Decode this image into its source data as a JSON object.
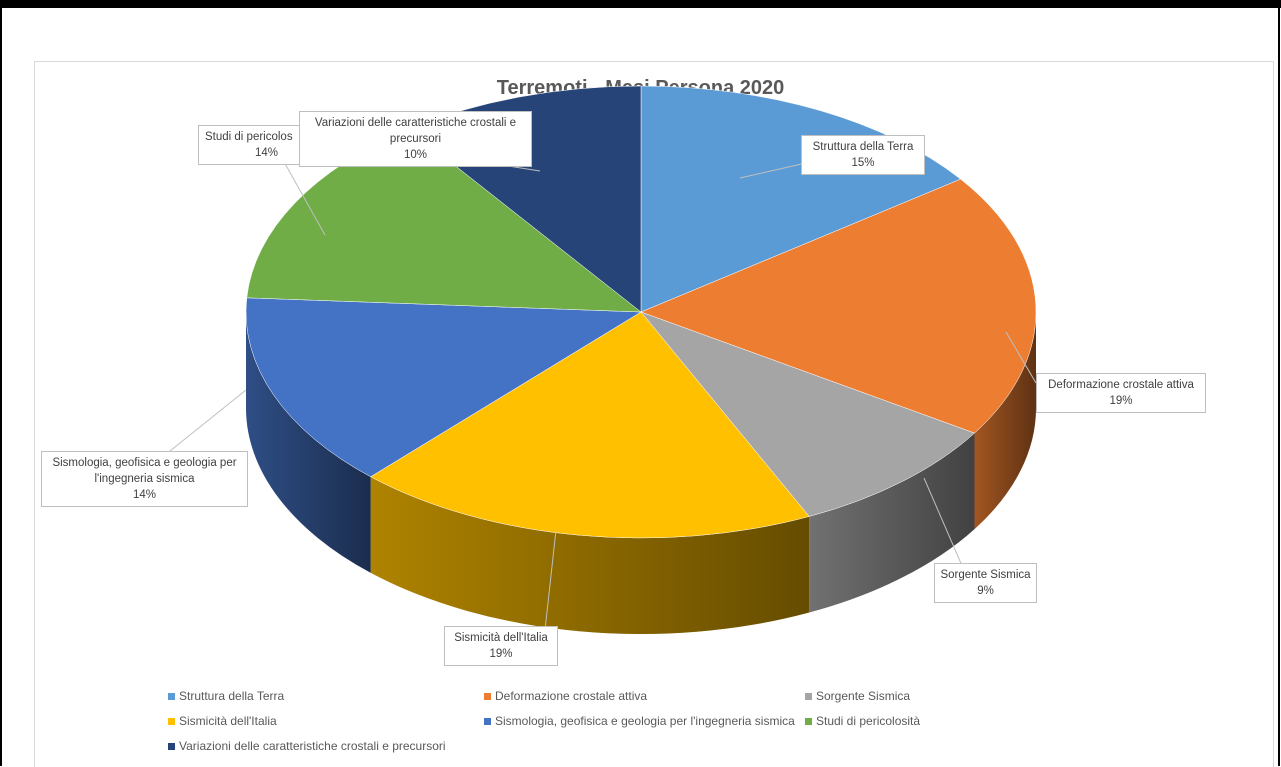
{
  "chart_data": {
    "type": "pie",
    "title": "Terremoti - Mesi Persona 2020",
    "slices": [
      {
        "label": "Struttura della Terra",
        "value": 15,
        "display": "15%",
        "color": "#5b9bd5"
      },
      {
        "label": "Deformazione crostale attiva",
        "value": 19,
        "display": "19%",
        "color": "#ed7d31"
      },
      {
        "label": "Sorgente Sismica",
        "value": 9,
        "display": "9%",
        "color": "#a5a5a5"
      },
      {
        "label": "Sismicità dell'Italia",
        "value": 19,
        "display": "19%",
        "color": "#ffc000"
      },
      {
        "label": "Sismologia, geofisica e geologia per l'ingegneria sismica",
        "value": 14,
        "display": "14%",
        "color": "#4472c4"
      },
      {
        "label": "Studi di pericolosità",
        "value": 14,
        "display": "14%",
        "color": "#70ad47"
      },
      {
        "label": "Variazioni delle caratteristiche crostali e precursori",
        "value": 10,
        "display": "10%",
        "color": "#264478"
      }
    ],
    "legend_position": "bottom",
    "style": "3d-exploded-pie"
  },
  "callouts": {
    "struttura": {
      "name": "Struttura della Terra",
      "pct": "15%"
    },
    "deformazione": {
      "name": "Deformazione crostale attiva",
      "pct": "19%"
    },
    "sorgente": {
      "name": "Sorgente Sismica",
      "pct": "9%"
    },
    "sismicita": {
      "name": "Sismicità dell'Italia",
      "pct": "19%"
    },
    "sismologia": {
      "name_line1": "Sismologia, geofisica e geologia per",
      "name_line2": "l'ingegneria sismica",
      "pct": "14%"
    },
    "studi": {
      "name": "Studi di pericolos",
      "pct": "14%"
    },
    "variazioni": {
      "name_line1": "Variazioni delle caratteristiche crostali e",
      "name_line2": "precursori",
      "pct": "10%"
    }
  },
  "legend": [
    "Struttura della Terra",
    "Deformazione crostale attiva",
    "Sorgente Sismica",
    "Sismicità dell'Italia",
    "Sismologia, geofisica e geologia per l'ingegneria sismica",
    "Studi di pericolosità",
    "Variazioni delle caratteristiche crostali e precursori"
  ]
}
